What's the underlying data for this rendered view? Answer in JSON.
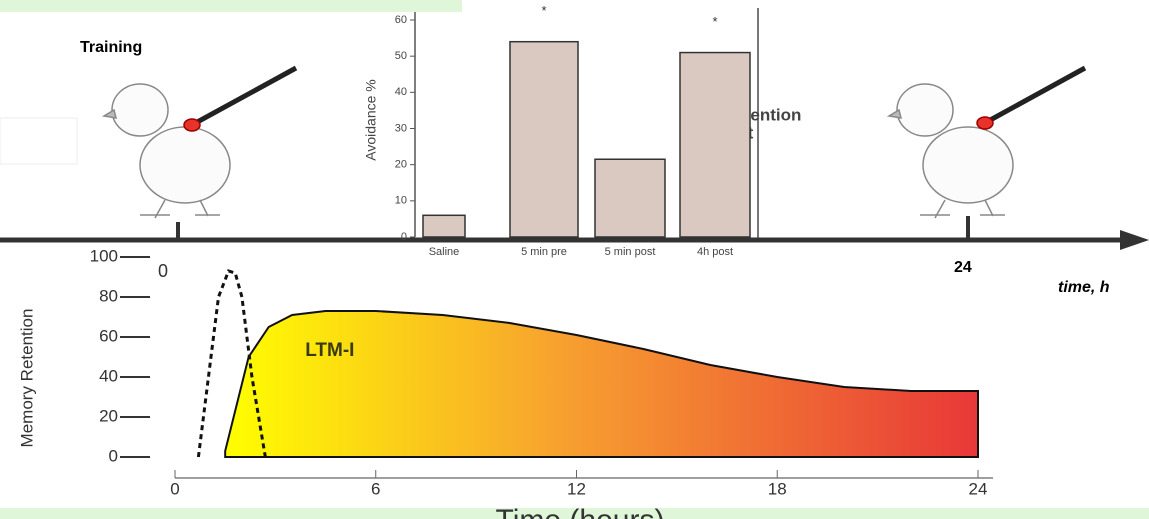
{
  "chart_data": [
    {
      "type": "bar",
      "y_label": "Avoidance %",
      "categories": [
        "Saline",
        "5 min pre",
        "5 min post",
        "4h post"
      ],
      "values": [
        6,
        54,
        21.5,
        51
      ],
      "significance": [
        null,
        "*",
        null,
        "*"
      ],
      "color": "#d9c9c1",
      "ylim": [
        0,
        60
      ],
      "yticks": [
        0,
        10,
        20,
        30,
        40,
        50,
        60
      ]
    },
    {
      "type": "area",
      "y_label": "Memory Retention",
      "x_label": "Time (hours)",
      "xlim": [
        0,
        24
      ],
      "xticks": [
        0,
        6,
        12,
        18,
        24
      ],
      "ylim": [
        0,
        100
      ],
      "yticks": [
        0,
        20,
        40,
        60,
        80,
        100
      ],
      "series": [
        {
          "name": "LTM-I",
          "x": [
            1.5,
            2.2,
            2.8,
            3.5,
            4.5,
            6,
            8,
            10,
            12,
            14,
            16,
            18,
            20,
            22,
            24
          ],
          "values": [
            3,
            50,
            65,
            71,
            73,
            73,
            71,
            67,
            61,
            54,
            46,
            40,
            35,
            33,
            33
          ]
        },
        {
          "x": [
            0.7,
            1.0,
            1.3,
            1.6,
            1.8,
            2.0,
            2.3,
            2.7
          ],
          "values": [
            0,
            40,
            80,
            93,
            92,
            80,
            40,
            0
          ],
          "style": "dashed"
        }
      ]
    }
  ],
  "timeline": {
    "start_label": "Training",
    "end_label": "24",
    "axis_label": "time, h"
  },
  "retention_label": [
    "Retention",
    "test"
  ],
  "corner_mark": "0"
}
